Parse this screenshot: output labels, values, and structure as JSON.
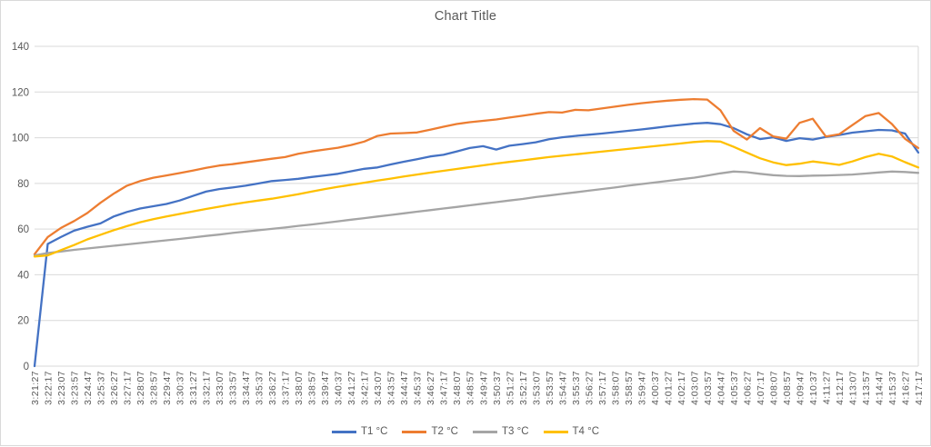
{
  "chart": {
    "title": "Chart Title",
    "text_color": "#595959",
    "grid_color": "#d9d9d9",
    "background": "#ffffff"
  },
  "chart_data": {
    "type": "line",
    "title": "Chart Title",
    "xlabel": "",
    "ylabel": "",
    "ylim": [
      0,
      140
    ],
    "y_ticks": [
      0,
      20,
      40,
      60,
      80,
      100,
      120,
      140
    ],
    "grid": true,
    "legend_position": "bottom",
    "x_labels": [
      "3:21:27",
      "3:22:17",
      "3:23:07",
      "3:23:57",
      "3:24:47",
      "3:25:37",
      "3:26:27",
      "3:27:17",
      "3:28:07",
      "3:28:57",
      "3:29:47",
      "3:30:37",
      "3:31:27",
      "3:32:17",
      "3:33:07",
      "3:33:57",
      "3:34:47",
      "3:35:37",
      "3:36:27",
      "3:37:17",
      "3:38:07",
      "3:38:57",
      "3:39:47",
      "3:40:37",
      "3:41:27",
      "3:42:17",
      "3:43:07",
      "3:43:57",
      "3:44:47",
      "3:45:37",
      "3:46:27",
      "3:47:17",
      "3:48:07",
      "3:48:57",
      "3:49:47",
      "3:50:37",
      "3:51:27",
      "3:52:17",
      "3:53:07",
      "3:53:57",
      "3:54:47",
      "3:55:37",
      "3:56:27",
      "3:57:17",
      "3:58:07",
      "3:58:57",
      "3:59:47",
      "4:00:37",
      "4:01:27",
      "4:02:17",
      "4:03:07",
      "4:03:57",
      "4:04:47",
      "4:05:37",
      "4:06:27",
      "4:07:17",
      "4:08:07",
      "4:08:57",
      "4:09:47",
      "4:10:37",
      "4:11:27",
      "4:12:17",
      "4:13:07",
      "4:13:57",
      "4:14:47",
      "4:15:37",
      "4:16:27",
      "4:17:17"
    ],
    "series": [
      {
        "name": "T1 °C",
        "color": "#4472C4",
        "values": [
          0,
          53.5,
          56.5,
          59.3,
          61.0,
          62.5,
          65.5,
          67.5,
          69.0,
          70.0,
          71.0,
          72.5,
          74.5,
          76.4,
          77.5,
          78.2,
          79.0,
          80.0,
          81.0,
          81.5,
          82.0,
          82.8,
          83.5,
          84.2,
          85.3,
          86.4,
          87.0,
          88.3,
          89.5,
          90.6,
          91.8,
          92.5,
          94.0,
          95.5,
          96.3,
          94.8,
          96.5,
          97.2,
          98.0,
          99.3,
          100.2,
          100.8,
          101.3,
          101.8,
          102.4,
          103.0,
          103.6,
          104.3,
          105.0,
          105.6,
          106.2,
          106.5,
          105.9,
          104.2,
          101.5,
          99.4,
          100.2,
          98.6,
          99.8,
          99.2,
          100.3,
          101.2,
          102.2,
          102.8,
          103.4,
          103.2,
          101.8,
          93.5
        ]
      },
      {
        "name": "T2 °C",
        "color": "#ED7D31",
        "values": [
          49.0,
          56.5,
          60.5,
          63.5,
          67.0,
          71.5,
          75.5,
          79.0,
          81.0,
          82.5,
          83.5,
          84.5,
          85.6,
          86.8,
          87.8,
          88.4,
          89.2,
          90.0,
          90.8,
          91.5,
          93.0,
          94.0,
          94.8,
          95.6,
          96.8,
          98.3,
          100.8,
          101.8,
          102.0,
          102.3,
          103.5,
          104.8,
          106.0,
          106.8,
          107.4,
          108.0,
          108.8,
          109.6,
          110.5,
          111.2,
          111.0,
          112.2,
          112.0,
          112.8,
          113.6,
          114.4,
          115.1,
          115.7,
          116.2,
          116.6,
          116.9,
          116.7,
          112.0,
          103.0,
          99.2,
          104.2,
          100.6,
          99.6,
          106.5,
          108.3,
          100.5,
          101.5,
          105.5,
          109.5,
          110.8,
          106.0,
          99.5,
          95.5
        ]
      },
      {
        "name": "T3 °C",
        "color": "#A5A5A5",
        "values": [
          48.5,
          49.5,
          50.2,
          50.9,
          51.5,
          52.1,
          52.7,
          53.3,
          53.9,
          54.5,
          55.1,
          55.7,
          56.3,
          57.0,
          57.6,
          58.3,
          58.9,
          59.5,
          60.1,
          60.7,
          61.4,
          62.0,
          62.7,
          63.4,
          64.1,
          64.8,
          65.5,
          66.2,
          66.9,
          67.6,
          68.3,
          69.0,
          69.7,
          70.4,
          71.1,
          71.8,
          72.5,
          73.2,
          74.0,
          74.7,
          75.4,
          76.1,
          76.8,
          77.5,
          78.2,
          79.0,
          79.7,
          80.4,
          81.1,
          81.8,
          82.5,
          83.4,
          84.4,
          85.2,
          84.9,
          84.2,
          83.6,
          83.3,
          83.2,
          83.4,
          83.5,
          83.7,
          83.9,
          84.3,
          84.8,
          85.2,
          85.0,
          84.6
        ]
      },
      {
        "name": "T4 °C",
        "color": "#FFC000",
        "values": [
          48.0,
          48.5,
          50.8,
          53.0,
          55.5,
          57.5,
          59.5,
          61.3,
          63.0,
          64.3,
          65.5,
          66.6,
          67.7,
          68.8,
          69.8,
          70.8,
          71.7,
          72.5,
          73.3,
          74.3,
          75.3,
          76.4,
          77.5,
          78.5,
          79.4,
          80.3,
          81.2,
          82.1,
          83.0,
          83.9,
          84.7,
          85.5,
          86.3,
          87.1,
          87.9,
          88.7,
          89.4,
          90.1,
          90.8,
          91.5,
          92.1,
          92.7,
          93.3,
          93.9,
          94.5,
          95.1,
          95.7,
          96.3,
          96.9,
          97.5,
          98.1,
          98.5,
          98.3,
          96.0,
          93.5,
          91.0,
          89.2,
          88.0,
          88.6,
          89.6,
          88.9,
          88.1,
          89.6,
          91.5,
          93.0,
          91.8,
          89.3,
          87.0
        ]
      }
    ]
  },
  "legend": {
    "items": [
      {
        "label": "T1 °C",
        "color": "#4472C4"
      },
      {
        "label": "T2 °C",
        "color": "#ED7D31"
      },
      {
        "label": "T3 °C",
        "color": "#A5A5A5"
      },
      {
        "label": "T4 °C",
        "color": "#FFC000"
      }
    ]
  }
}
